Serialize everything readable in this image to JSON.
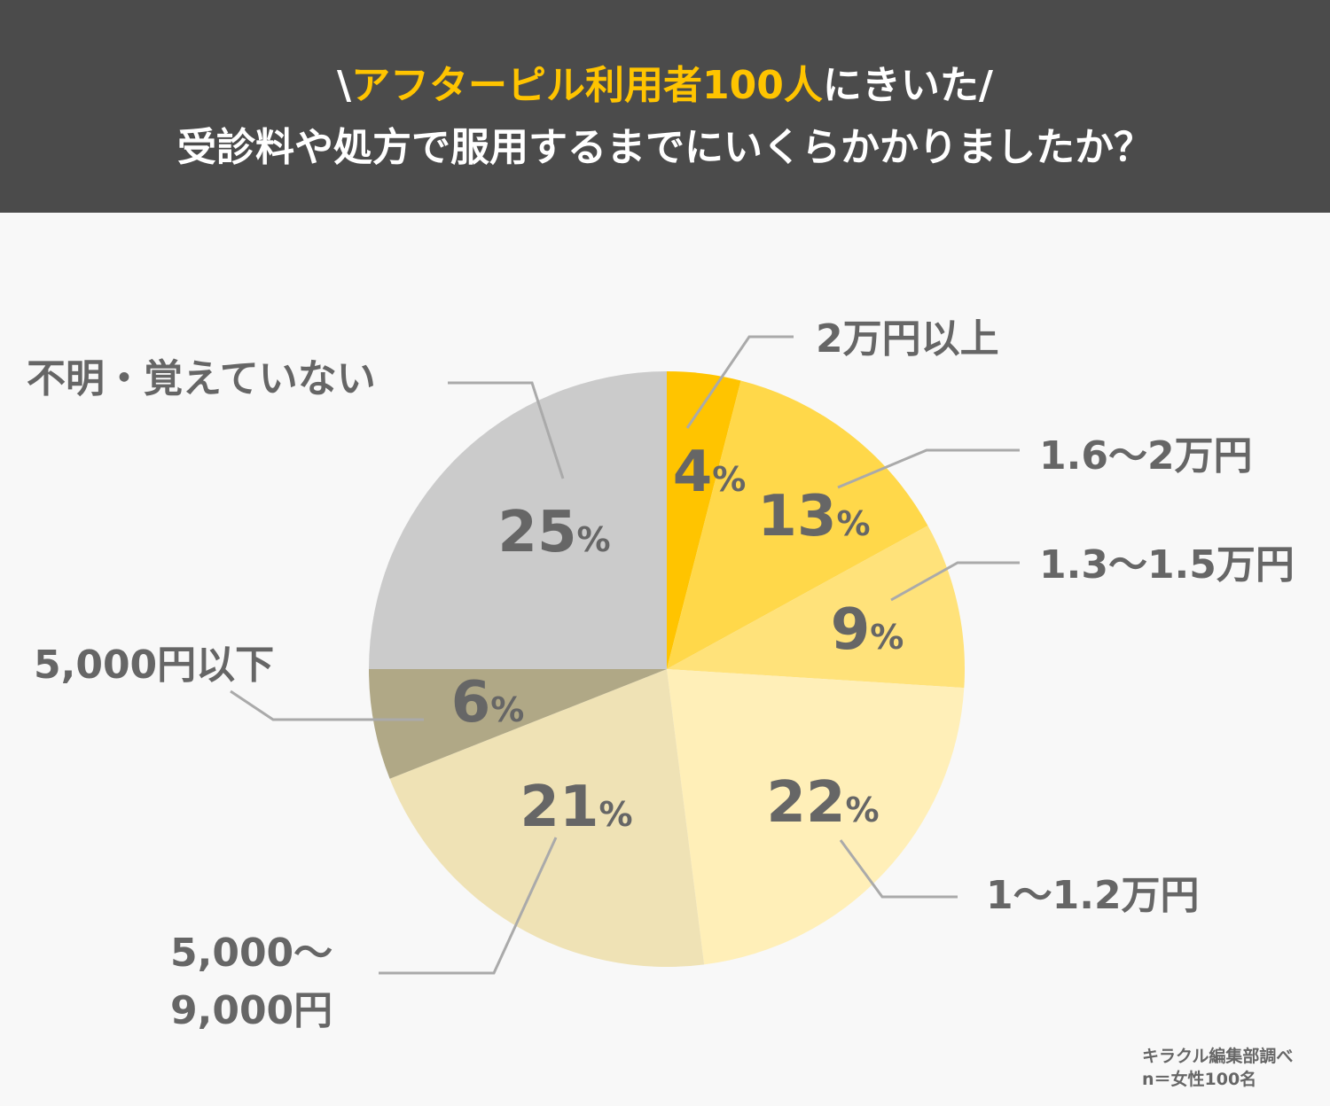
{
  "header": {
    "title_prefix": "\\",
    "title_highlight": "アフターピル利用者100人",
    "title_suffix": "にきいた/",
    "subtitle": "受診料や処方で服用するまでにいくらかかりましたか？"
  },
  "chart_data": {
    "type": "pie",
    "title": "受診料や処方で服用するまでにいくらかかりましたか？",
    "start": "top",
    "direction": "clockwise",
    "slices": [
      {
        "label": "2万円以上",
        "value": 4,
        "color": "#ffc400"
      },
      {
        "label": "1.6〜2万円",
        "value": 13,
        "color": "#ffd84a"
      },
      {
        "label": "1.3〜1.5万円",
        "value": 9,
        "color": "#ffe27a"
      },
      {
        "label": "1〜1.2万円",
        "value": 22,
        "color": "#ffefb8"
      },
      {
        "label": "5,000〜9,000円",
        "value": 21,
        "color": "#efe2b5"
      },
      {
        "label": "5,000円以下",
        "value": 6,
        "color": "#b0a886"
      },
      {
        "label": "不明・覚えていない",
        "value": 25,
        "color": "#cbcbcb"
      }
    ],
    "value_suffix": "%"
  },
  "labels": {
    "l0": "2万円以上",
    "l1": "1.6〜2万円",
    "l2": "1.3〜1.5万円",
    "l3": "1〜1.2万円",
    "l4a": "5,000〜",
    "l4b": "9,000円",
    "l5": "5,000円以下",
    "l6": "不明・覚えていない"
  },
  "footer": {
    "source": "キラクル編集部調べ",
    "sample": "n＝女性100名"
  }
}
